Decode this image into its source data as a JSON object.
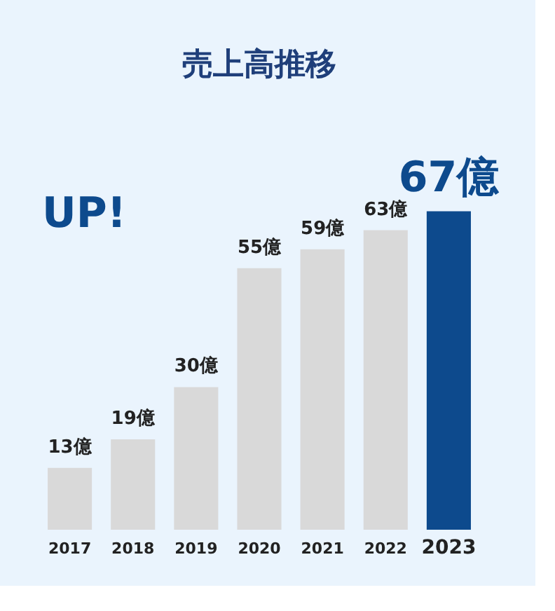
{
  "chart_data": {
    "type": "bar",
    "title": "売上高推移",
    "categories": [
      "2017",
      "2018",
      "2019",
      "2020",
      "2021",
      "2022",
      "2023"
    ],
    "values": [
      13,
      19,
      30,
      55,
      59,
      63,
      67
    ],
    "value_labels": [
      "13億",
      "19億",
      "30億",
      "55億",
      "59億",
      "63億",
      "67億"
    ],
    "colors": [
      "#d9d9d9",
      "#d9d9d9",
      "#d9d9d9",
      "#d9d9d9",
      "#d9d9d9",
      "#d9d9d9",
      "#0d4a8d"
    ],
    "annotations": [
      "UP!"
    ]
  }
}
